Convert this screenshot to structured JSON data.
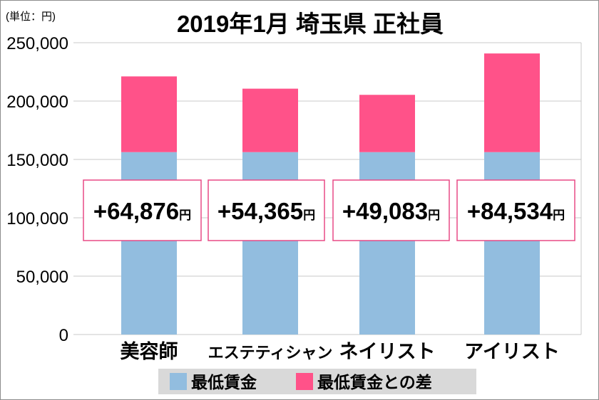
{
  "chart_data": {
    "type": "bar",
    "stacked": true,
    "title": "2019年1月 埼玉県 正社員",
    "unit_label": "(単位：円)",
    "categories": [
      "美容師",
      "エステティシャン",
      "ネイリスト",
      "アイリスト"
    ],
    "series": [
      {
        "name": "最低賃金",
        "values": [
          156252,
          156252,
          156252,
          156252
        ],
        "color": "#92BDDF"
      },
      {
        "name": "最低賃金との差",
        "values": [
          64876,
          54365,
          49083,
          84534
        ],
        "color": "#FF5289"
      }
    ],
    "annotations": [
      "+64,876",
      "+54,365",
      "+49,083",
      "+84,534"
    ],
    "annotation_unit": "円",
    "ylim": [
      0,
      250000
    ],
    "yticks": [
      "0",
      "50,000",
      "100,000",
      "150,000",
      "200,000",
      "250,000"
    ],
    "grid": true,
    "legend_position": "bottom"
  }
}
